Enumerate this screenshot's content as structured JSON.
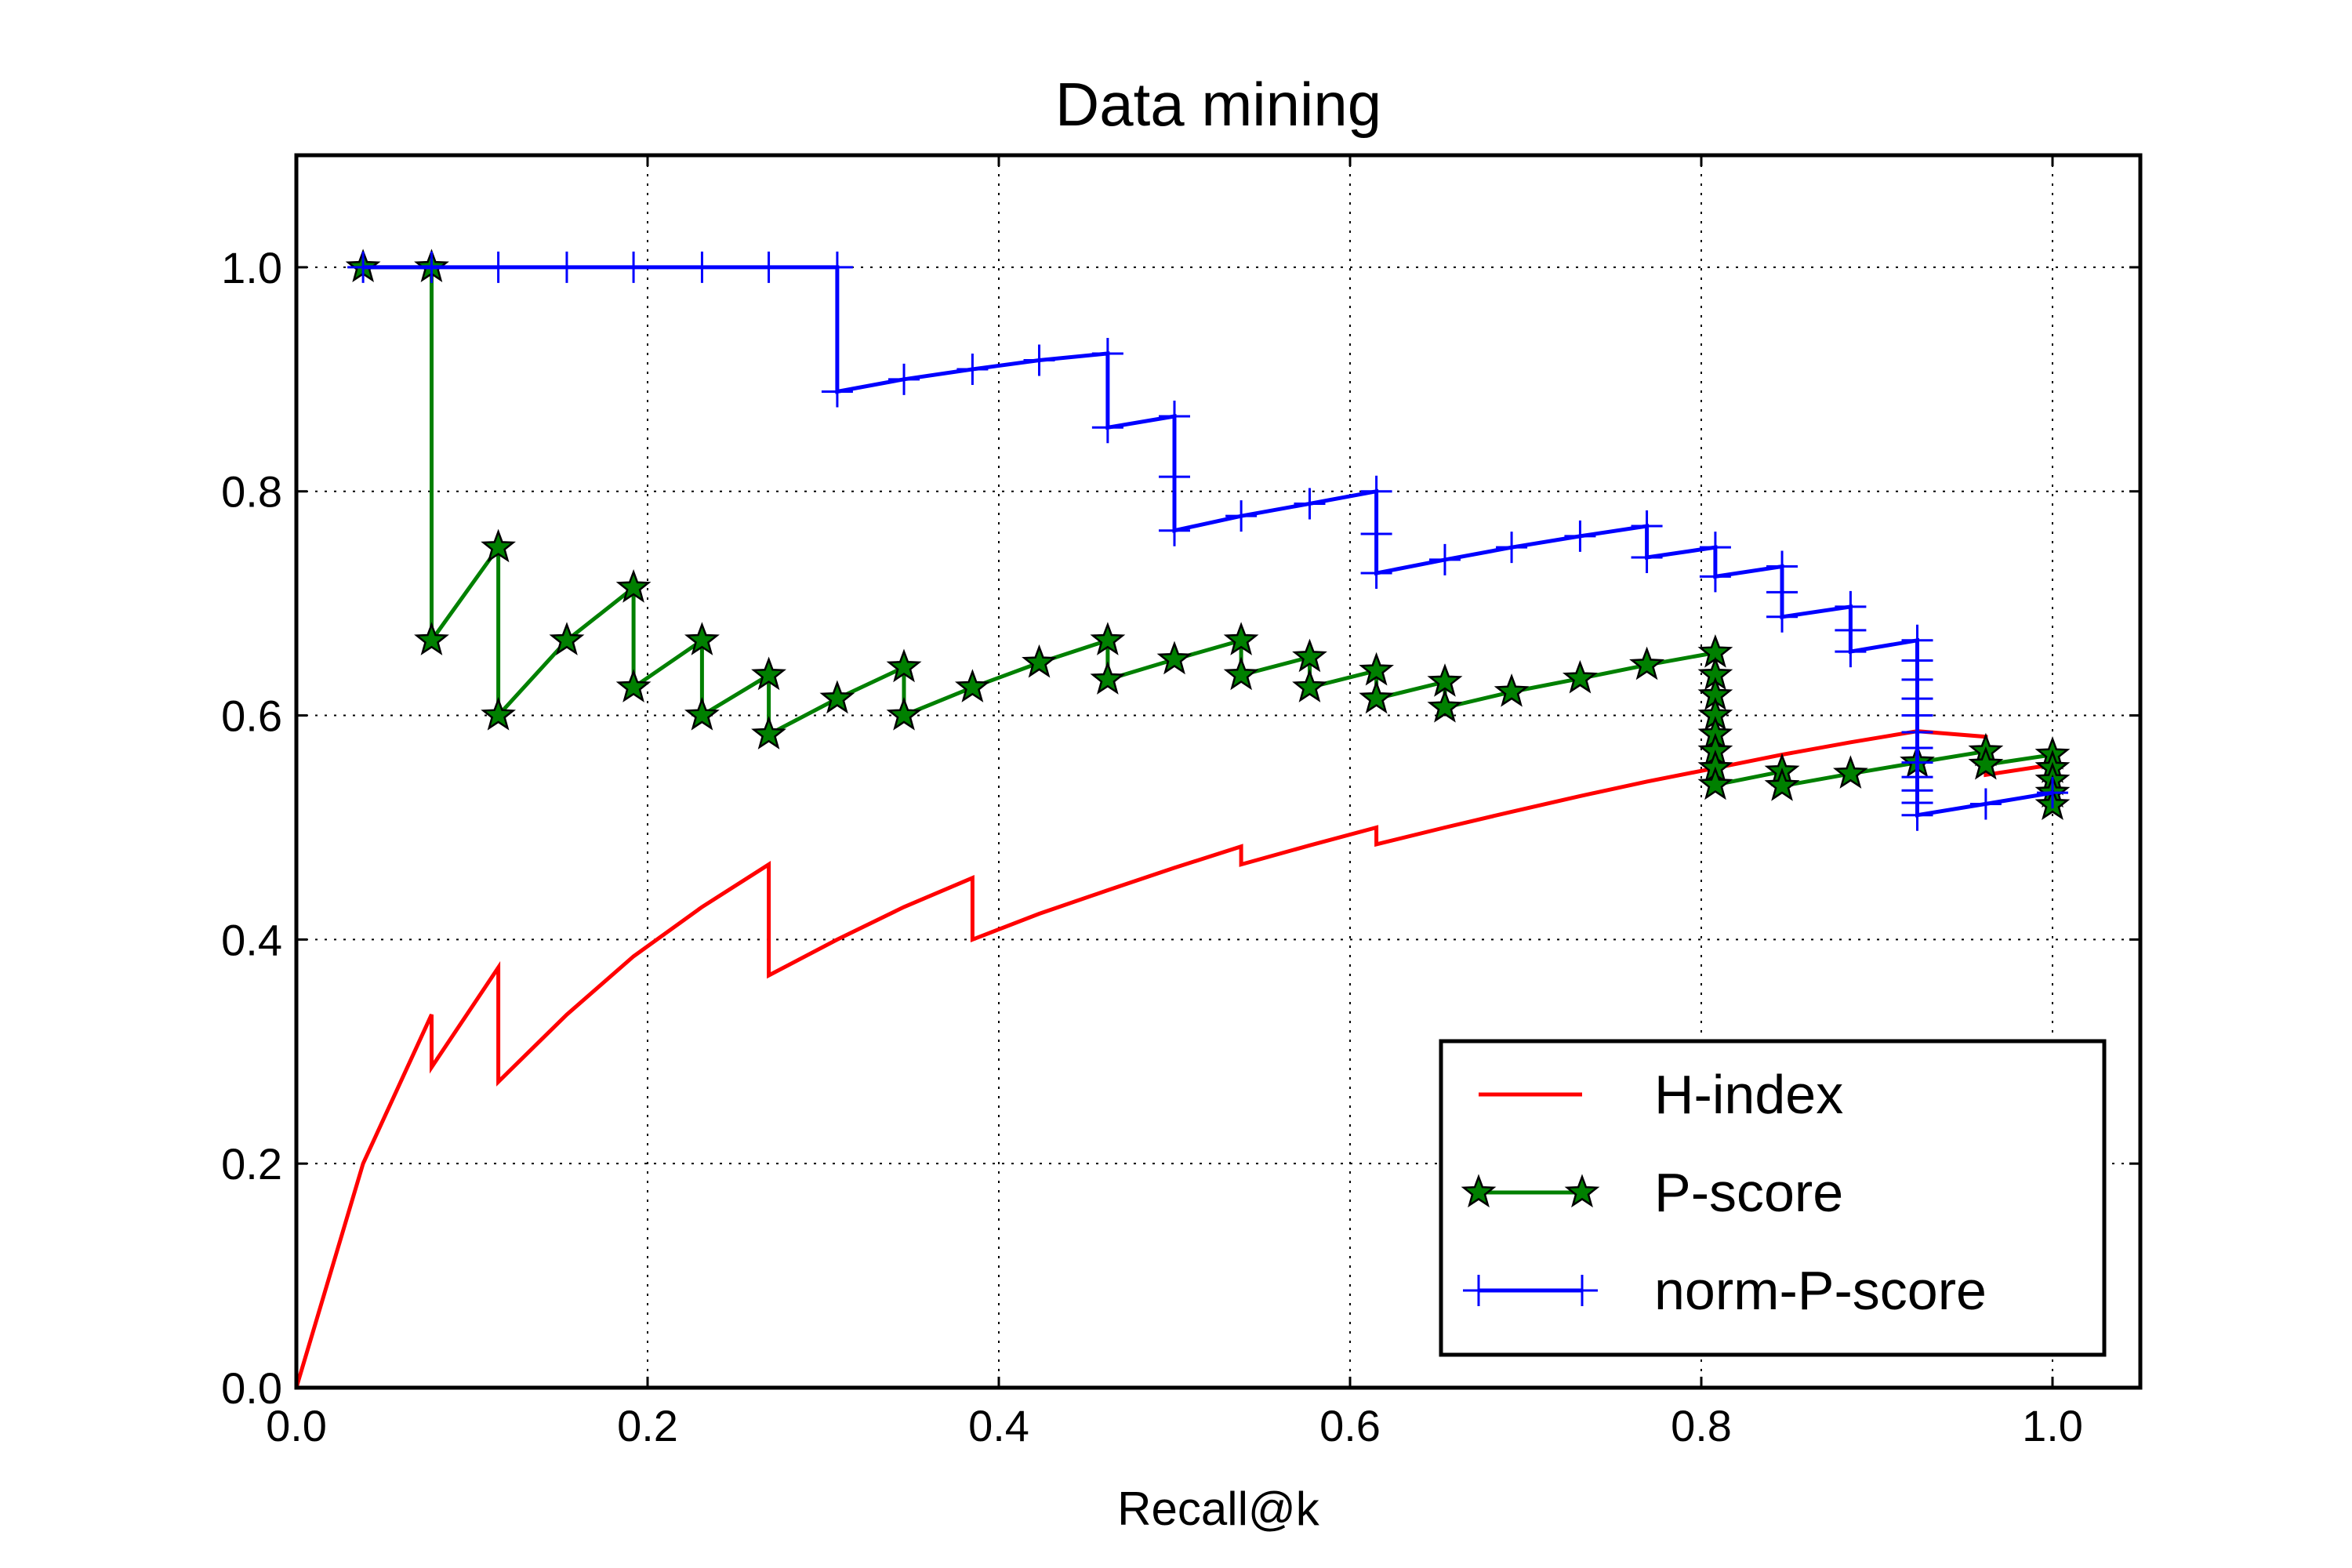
{
  "chart_data": {
    "type": "line",
    "title": "Data mining",
    "xlabel": "Recall@k",
    "ylabel": "",
    "xlim": [
      0.0,
      1.05
    ],
    "ylim": [
      0.0,
      1.1
    ],
    "xticks": [
      "0.0",
      "0.2",
      "0.4",
      "0.6",
      "0.8",
      "1.0"
    ],
    "yticks": [
      "0.0",
      "0.2",
      "0.4",
      "0.6",
      "0.8",
      "1.0"
    ],
    "grid": true,
    "legend_position": "bottom-right",
    "series": [
      {
        "name": "H-index",
        "color": "#ff0000",
        "marker": "none",
        "points": [
          [
            0.0,
            0.0
          ],
          [
            0.038,
            0.2
          ],
          [
            0.077,
            0.333
          ],
          [
            0.077,
            0.286
          ],
          [
            0.115,
            0.375
          ],
          [
            0.115,
            0.273
          ],
          [
            0.154,
            0.333
          ],
          [
            0.192,
            0.385
          ],
          [
            0.231,
            0.429
          ],
          [
            0.269,
            0.467
          ],
          [
            0.269,
            0.368
          ],
          [
            0.308,
            0.4
          ],
          [
            0.346,
            0.429
          ],
          [
            0.385,
            0.455
          ],
          [
            0.385,
            0.4
          ],
          [
            0.423,
            0.423
          ],
          [
            0.462,
            0.444
          ],
          [
            0.5,
            0.464
          ],
          [
            0.538,
            0.483
          ],
          [
            0.538,
            0.467
          ],
          [
            0.577,
            0.484
          ],
          [
            0.615,
            0.5
          ],
          [
            0.615,
            0.485
          ],
          [
            0.654,
            0.5
          ],
          [
            0.692,
            0.514
          ],
          [
            0.731,
            0.528
          ],
          [
            0.769,
            0.541
          ],
          [
            0.808,
            0.553
          ],
          [
            0.846,
            0.565
          ],
          [
            0.885,
            0.576
          ],
          [
            0.923,
            0.586
          ],
          [
            0.962,
            0.581
          ],
          [
            0.962,
            0.547
          ],
          [
            1.0,
            0.556
          ]
        ]
      },
      {
        "name": "P-score",
        "color": "#008000",
        "marker": "star",
        "points": [
          [
            0.038,
            1.0
          ],
          [
            0.077,
            1.0
          ],
          [
            0.077,
            0.667
          ],
          [
            0.115,
            0.75
          ],
          [
            0.115,
            0.6
          ],
          [
            0.154,
            0.667
          ],
          [
            0.192,
            0.714
          ],
          [
            0.192,
            0.625
          ],
          [
            0.231,
            0.667
          ],
          [
            0.231,
            0.6
          ],
          [
            0.269,
            0.636
          ],
          [
            0.269,
            0.583
          ],
          [
            0.308,
            0.615
          ],
          [
            0.346,
            0.643
          ],
          [
            0.346,
            0.6
          ],
          [
            0.385,
            0.625
          ],
          [
            0.423,
            0.647
          ],
          [
            0.462,
            0.667
          ],
          [
            0.462,
            0.632
          ],
          [
            0.5,
            0.65
          ],
          [
            0.538,
            0.667
          ],
          [
            0.538,
            0.636
          ],
          [
            0.577,
            0.652
          ],
          [
            0.577,
            0.625
          ],
          [
            0.615,
            0.64
          ],
          [
            0.615,
            0.615
          ],
          [
            0.654,
            0.63
          ],
          [
            0.654,
            0.607
          ],
          [
            0.692,
            0.621
          ],
          [
            0.731,
            0.633
          ],
          [
            0.769,
            0.645
          ],
          [
            0.808,
            0.656
          ],
          [
            0.808,
            0.636
          ],
          [
            0.808,
            0.618
          ],
          [
            0.808,
            0.6
          ],
          [
            0.808,
            0.583
          ],
          [
            0.808,
            0.568
          ],
          [
            0.808,
            0.553
          ],
          [
            0.808,
            0.538
          ],
          [
            0.846,
            0.55
          ],
          [
            0.846,
            0.537
          ],
          [
            0.885,
            0.548
          ],
          [
            0.923,
            0.558
          ],
          [
            0.962,
            0.568
          ],
          [
            0.962,
            0.556
          ],
          [
            1.0,
            0.565
          ],
          [
            1.0,
            0.553
          ],
          [
            1.0,
            0.542
          ],
          [
            1.0,
            0.531
          ],
          [
            1.0,
            0.52
          ]
        ]
      },
      {
        "name": "norm-P-score",
        "color": "#0000ff",
        "marker": "plus",
        "points": [
          [
            0.038,
            1.0
          ],
          [
            0.077,
            1.0
          ],
          [
            0.115,
            1.0
          ],
          [
            0.154,
            1.0
          ],
          [
            0.192,
            1.0
          ],
          [
            0.231,
            1.0
          ],
          [
            0.269,
            1.0
          ],
          [
            0.308,
            1.0
          ],
          [
            0.308,
            0.889
          ],
          [
            0.346,
            0.9
          ],
          [
            0.385,
            0.909
          ],
          [
            0.423,
            0.917
          ],
          [
            0.462,
            0.923
          ],
          [
            0.462,
            0.857
          ],
          [
            0.5,
            0.867
          ],
          [
            0.5,
            0.813
          ],
          [
            0.5,
            0.765
          ],
          [
            0.538,
            0.778
          ],
          [
            0.577,
            0.789
          ],
          [
            0.615,
            0.8
          ],
          [
            0.615,
            0.762
          ],
          [
            0.615,
            0.727
          ],
          [
            0.654,
            0.739
          ],
          [
            0.692,
            0.75
          ],
          [
            0.731,
            0.76
          ],
          [
            0.769,
            0.769
          ],
          [
            0.769,
            0.741
          ],
          [
            0.808,
            0.75
          ],
          [
            0.808,
            0.724
          ],
          [
            0.846,
            0.733
          ],
          [
            0.846,
            0.71
          ],
          [
            0.846,
            0.688
          ],
          [
            0.885,
            0.697
          ],
          [
            0.885,
            0.676
          ],
          [
            0.885,
            0.657
          ],
          [
            0.923,
            0.667
          ],
          [
            0.923,
            0.649
          ],
          [
            0.923,
            0.632
          ],
          [
            0.923,
            0.615
          ],
          [
            0.923,
            0.6
          ],
          [
            0.923,
            0.585
          ],
          [
            0.923,
            0.571
          ],
          [
            0.923,
            0.558
          ],
          [
            0.923,
            0.545
          ],
          [
            0.923,
            0.533
          ],
          [
            0.923,
            0.522
          ],
          [
            0.923,
            0.511
          ],
          [
            0.962,
            0.521
          ],
          [
            1.0,
            0.531
          ]
        ]
      }
    ]
  }
}
